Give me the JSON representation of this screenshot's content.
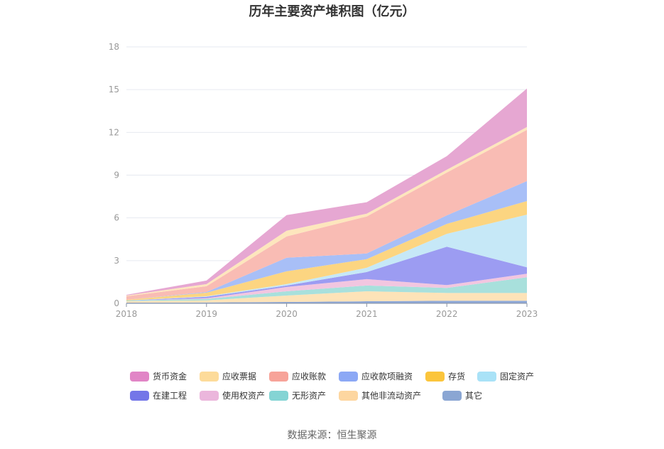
{
  "chart_data": {
    "type": "area",
    "stacked": true,
    "title": "历年主要资产堆积图（亿元）",
    "source": "数据来源：恒生聚源",
    "x": [
      "2018",
      "2019",
      "2020",
      "2021",
      "2022",
      "2023"
    ],
    "ylim": [
      0,
      18
    ],
    "yticks": [
      0,
      3,
      6,
      9,
      12,
      15,
      18
    ],
    "grid": true,
    "legend_position": "bottom",
    "series": [
      {
        "name": "其它",
        "color": "#8fa9d8",
        "values": [
          0.05,
          0.06,
          0.1,
          0.15,
          0.18,
          0.18
        ]
      },
      {
        "name": "其他非流动资产",
        "color": "#fde3b8",
        "values": [
          0.1,
          0.15,
          0.45,
          0.7,
          0.55,
          0.55
        ]
      },
      {
        "name": "无形资产",
        "color": "#a8e0dc",
        "values": [
          0.05,
          0.1,
          0.3,
          0.4,
          0.35,
          1.1
        ]
      },
      {
        "name": "使用权资产",
        "color": "#f2c6e0",
        "values": [
          0.0,
          0.05,
          0.3,
          0.45,
          0.2,
          0.25
        ]
      },
      {
        "name": "在建工程",
        "color": "#9c9cf2",
        "values": [
          0.0,
          0.1,
          0.1,
          0.5,
          2.7,
          0.45
        ]
      },
      {
        "name": "固定资产",
        "color": "#c6e8f7",
        "values": [
          0.0,
          0.04,
          0.1,
          0.3,
          0.9,
          3.7
        ]
      },
      {
        "name": "存货",
        "color": "#fcd581",
        "values": [
          0.05,
          0.25,
          0.9,
          0.6,
          0.7,
          0.95
        ]
      },
      {
        "name": "应收款项融资",
        "color": "#a8bff7",
        "values": [
          0.0,
          0.05,
          0.95,
          0.4,
          0.6,
          1.4
        ]
      },
      {
        "name": "应收账款",
        "color": "#f9bcb4",
        "values": [
          0.25,
          0.4,
          1.5,
          2.6,
          3.0,
          3.6
        ]
      },
      {
        "name": "应收票据",
        "color": "#fde6bd",
        "values": [
          0.05,
          0.15,
          0.4,
          0.2,
          0.2,
          0.2
        ]
      },
      {
        "name": "货币资金",
        "color": "#e6a7d2",
        "values": [
          0.05,
          0.25,
          1.1,
          0.8,
          0.95,
          2.7
        ]
      }
    ],
    "legend_order": [
      "货币资金",
      "应收票据",
      "应收账款",
      "应收款项融资",
      "存货",
      "固定资产",
      "在建工程",
      "使用权资产",
      "无形资产",
      "其他非流动资产",
      "其它"
    ],
    "legend_colors": {
      "货币资金": "#e185c6",
      "应收票据": "#fddb9a",
      "应收账款": "#f7a399",
      "应收款项融资": "#8ca8f5",
      "存货": "#fbc53c",
      "固定资产": "#a9e2f7",
      "在建工程": "#7476e8",
      "使用权资产": "#ebb6dc",
      "无形资产": "#84d4d4",
      "其他非流动资产": "#fdd6a0",
      "其它": "#8aa6d3"
    }
  }
}
